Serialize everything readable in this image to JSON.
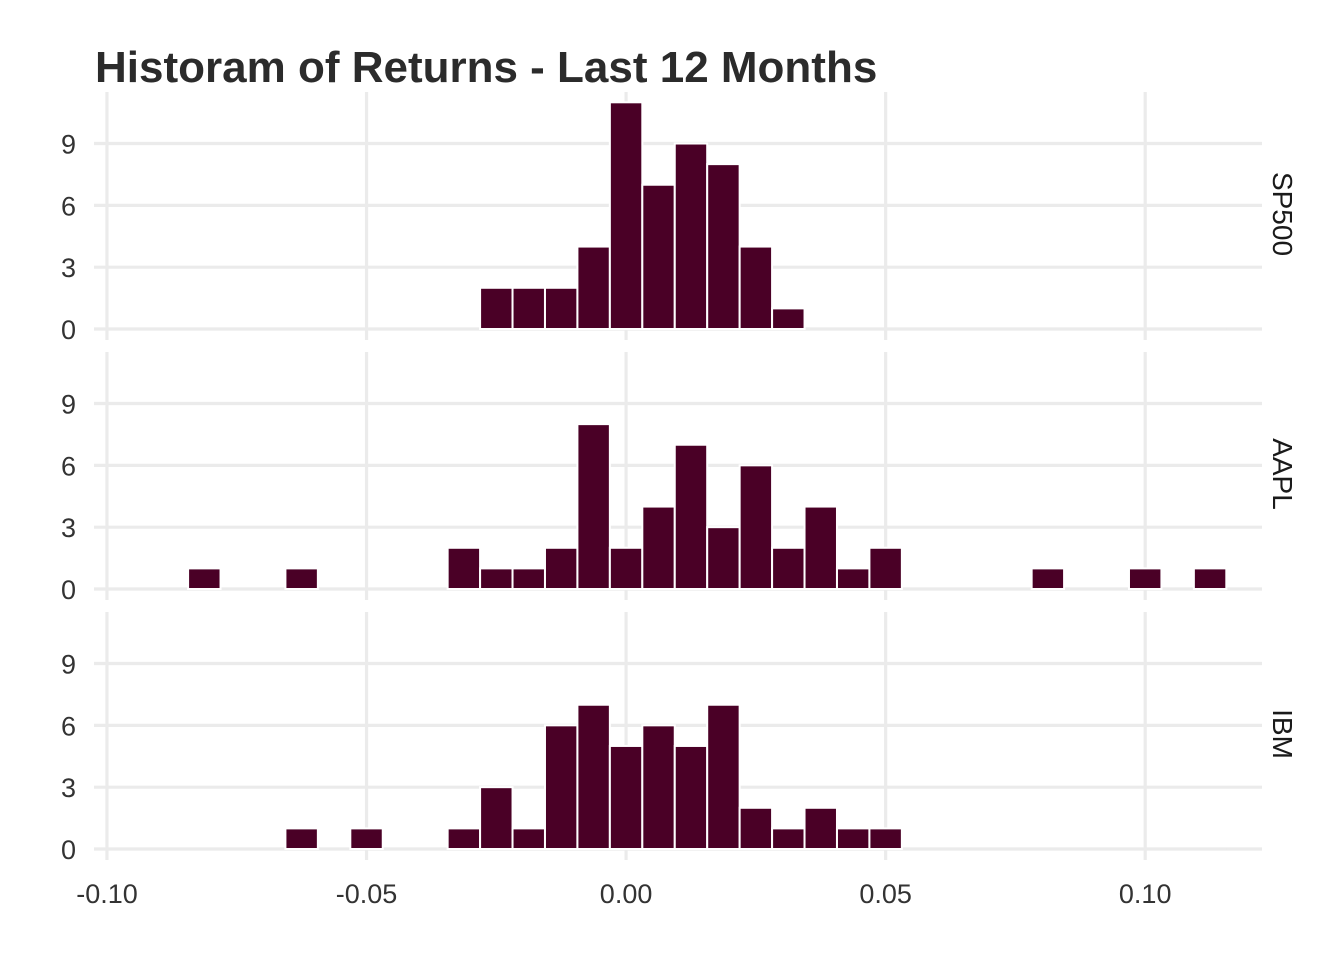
{
  "chart_data": {
    "type": "bar",
    "title": "Historam of Returns - Last 12 Months",
    "xlabel": "",
    "ylabel": "",
    "xlim": [
      -0.1025,
      0.1225
    ],
    "ylim": [
      0,
      11.5
    ],
    "x_ticks": [
      -0.1,
      -0.05,
      0.0,
      0.05,
      0.1
    ],
    "x_tick_labels": [
      "-0.10",
      "-0.05",
      "0.00",
      "0.05",
      "0.10"
    ],
    "y_ticks": [
      0,
      3,
      6,
      9
    ],
    "y_tick_labels": [
      "0",
      "3",
      "6",
      "9"
    ],
    "bin_width": 0.00625,
    "bin_centers": [
      -0.09375,
      -0.0875,
      -0.08125,
      -0.075,
      -0.06875,
      -0.0625,
      -0.05625,
      -0.05,
      -0.04375,
      -0.0375,
      -0.03125,
      -0.025,
      -0.01875,
      -0.0125,
      -0.00625,
      0.0,
      0.00625,
      0.0125,
      0.01875,
      0.025,
      0.03125,
      0.0375,
      0.04375,
      0.05,
      0.05625,
      0.0625,
      0.06875,
      0.075,
      0.08125,
      0.0875,
      0.09375,
      0.1,
      0.10625,
      0.1125
    ],
    "fill_color": "#4a0026",
    "grid": true,
    "facets": [
      {
        "name": "SP500",
        "values": [
          0,
          0,
          0,
          0,
          0,
          0,
          0,
          0,
          0,
          0,
          0,
          2,
          2,
          2,
          4,
          11,
          7,
          9,
          8,
          4,
          1,
          0,
          0,
          0,
          0,
          0,
          0,
          0,
          0,
          0,
          0,
          0,
          0,
          0
        ]
      },
      {
        "name": "AAPL",
        "values": [
          0,
          0,
          1,
          0,
          0,
          1,
          0,
          0,
          0,
          0,
          2,
          1,
          1,
          2,
          8,
          2,
          4,
          7,
          3,
          6,
          2,
          4,
          1,
          2,
          0,
          0,
          0,
          0,
          1,
          0,
          0,
          1,
          0,
          1
        ]
      },
      {
        "name": "IBM",
        "values": [
          0,
          0,
          0,
          0,
          0,
          1,
          0,
          1,
          0,
          0,
          1,
          3,
          1,
          6,
          7,
          5,
          6,
          5,
          7,
          2,
          1,
          2,
          1,
          1,
          0,
          0,
          0,
          0,
          0,
          0,
          0,
          0,
          0,
          0
        ]
      }
    ]
  }
}
